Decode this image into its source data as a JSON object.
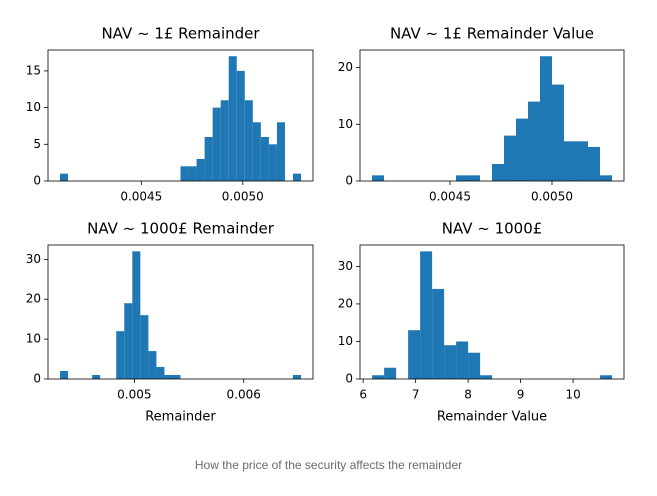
{
  "chart_data": [
    {
      "type": "histogram",
      "title": "NAV ~ 1£ Remainder",
      "color": "#1f77b4",
      "bins": [
        0.004099,
        0.0041386,
        0.0041782,
        0.0042178,
        0.0042574,
        0.004297,
        0.0043366,
        0.0043762,
        0.0044158,
        0.0044554,
        0.004495,
        0.0045346,
        0.0045742,
        0.0046138,
        0.0046534,
        0.004693,
        0.0047326,
        0.0047722,
        0.0048118,
        0.0048514,
        0.004891,
        0.0049306,
        0.0049702,
        0.0050098,
        0.0050494,
        0.005089,
        0.0051286,
        0.0051682,
        0.0052078,
        0.0052474,
        0.005287
      ],
      "values": [
        1,
        0,
        0,
        0,
        0,
        0,
        0,
        0,
        0,
        0,
        0,
        0,
        0,
        0,
        0,
        2,
        2,
        3,
        6,
        10,
        11,
        17,
        15,
        11,
        8,
        6,
        5,
        8,
        0,
        1
      ],
      "xlim": [
        0.00404,
        0.005346
      ],
      "xticks": [
        0.0045,
        {
          "value": 0.005,
          "label": "0.0050"
        }
      ],
      "ylim": [
        0,
        17.85
      ],
      "yticks": [
        0,
        5,
        10,
        15
      ]
    },
    {
      "type": "histogram",
      "title": "NAV ~ 1£ Remainder Value",
      "color": "#1f77b4",
      "bins": [
        0.004118,
        0.0041768,
        0.0042356,
        0.0042944,
        0.0043532,
        0.004412,
        0.0044708,
        0.0045296,
        0.0045884,
        0.0046472,
        0.004706,
        0.0047648,
        0.0048236,
        0.0048824,
        0.0049412,
        0.005,
        0.0050588,
        0.0051176,
        0.0051764,
        0.0052352,
        0.005294
      ],
      "values": [
        1,
        0,
        0,
        0,
        0,
        0,
        0,
        1,
        1,
        0,
        3,
        8,
        11,
        14,
        22,
        17,
        7,
        7,
        6,
        1
      ],
      "xlim": [
        0.004059,
        0.005353
      ],
      "xticks": [
        0.0045,
        {
          "value": 0.005,
          "label": "0.0050"
        }
      ],
      "ylim": [
        0,
        23.1
      ],
      "yticks": [
        0,
        10,
        20
      ]
    },
    {
      "type": "histogram",
      "title": "NAV ~ 1000£ Remainder",
      "xlabel": "Remainder",
      "color": "#1f77b4",
      "bins": [
        0.004321,
        0.0043944,
        0.0044678,
        0.0045412,
        0.0046146,
        0.004688,
        0.0047614,
        0.0048348,
        0.0049082,
        0.0049816,
        0.005055,
        0.0051284,
        0.0052018,
        0.0052752,
        0.0053486,
        0.005422,
        0.0054954,
        0.0055688,
        0.0056422,
        0.0057156,
        0.005789,
        0.0058624,
        0.0059358,
        0.0060092,
        0.0060826,
        0.006156,
        0.0062294,
        0.0063028,
        0.0063762,
        0.0064496,
        0.006523
      ],
      "values": [
        2,
        0,
        0,
        0,
        1,
        0,
        0,
        12,
        19,
        32,
        16,
        7,
        3,
        1,
        1,
        0,
        0,
        0,
        0,
        0,
        0,
        0,
        0,
        0,
        0,
        0,
        0,
        0,
        0,
        1
      ],
      "xlim": [
        0.004211,
        0.006633
      ],
      "xticks": [
        0.005,
        0.006
      ],
      "ylim": [
        0,
        33.6
      ],
      "yticks": [
        0,
        10,
        20,
        30
      ]
    },
    {
      "type": "histogram",
      "title": "NAV ~ 1000£",
      "xlabel": "Remainder Value",
      "color": "#1f77b4",
      "bins": [
        6.171,
        6.3996,
        6.6282,
        6.8568,
        7.0854,
        7.314,
        7.5426,
        7.7712,
        7.9998,
        8.2284,
        8.457,
        8.6856,
        8.9142,
        9.1428,
        9.3714,
        9.6,
        9.8286,
        10.0572,
        10.2858,
        10.5144,
        10.743
      ],
      "values": [
        1,
        3,
        0,
        13,
        34,
        24,
        9,
        10,
        7,
        1,
        0,
        0,
        0,
        0,
        0,
        0,
        0,
        0,
        0,
        1
      ],
      "xlim": [
        5.94,
        10.97
      ],
      "xticks": [
        6,
        7,
        8,
        9,
        10
      ],
      "ylim": [
        0,
        35.7
      ],
      "yticks": [
        0,
        10,
        20,
        30
      ]
    }
  ],
  "caption": "How the price of the security affects the remainder"
}
